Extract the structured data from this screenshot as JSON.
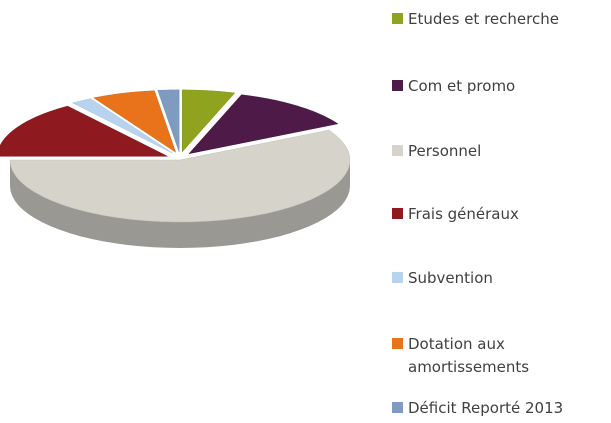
{
  "chart_data": {
    "type": "pie3d",
    "categories": [
      "Etudes et recherche",
      "Com et promo",
      "Personnel",
      "Frais généraux",
      "Subvention",
      "Dotation aux amortissements",
      "Déficit Reporté 2013"
    ],
    "values": [
      5,
      12,
      58,
      15,
      2,
      6,
      2
    ],
    "colors": [
      "#8fa31f",
      "#4e1a47",
      "#d6d3cb",
      "#8e1a1f",
      "#b7d3ee",
      "#e8731a",
      "#7f9cc0"
    ],
    "legend": "right"
  }
}
